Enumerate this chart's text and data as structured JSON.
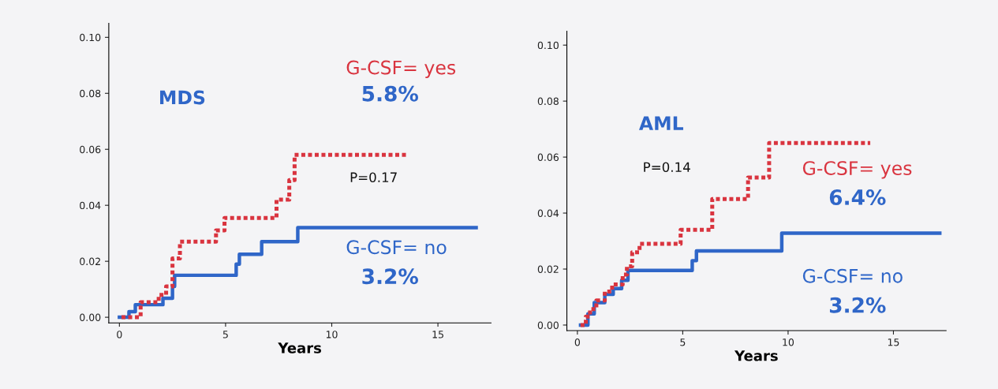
{
  "chart_data": [
    {
      "type": "step",
      "title": "MDS",
      "xlabel": "Years",
      "xlim": [
        -0.5,
        17.5
      ],
      "xticks": [
        0,
        5,
        10,
        15
      ],
      "ylim": [
        -0.002,
        0.105
      ],
      "yticks": [
        {
          "value": 0.0,
          "label": "0.00"
        },
        {
          "value": 0.02,
          "label": "0.02"
        },
        {
          "value": 0.04,
          "label": "0.04"
        },
        {
          "value": 0.06,
          "label": "0.06"
        },
        {
          "value": 0.08,
          "label": "0.08"
        },
        {
          "value": 0.1,
          "label": "0.10"
        }
      ],
      "grid": false,
      "legend": false,
      "series": [
        {
          "name": "G-CSF= yes",
          "color": "#d9343f",
          "line_style": "dotted",
          "x": [
            0.1,
            1.0,
            1.85,
            2.2,
            2.5,
            2.85,
            4.55,
            4.95,
            7.4,
            8.0,
            8.25,
            13.6
          ],
          "values": [
            0.0,
            0.0054,
            0.008,
            0.011,
            0.021,
            0.027,
            0.031,
            0.0355,
            0.042,
            0.049,
            0.058,
            0.058
          ]
        },
        {
          "name": "G-CSF= no",
          "color": "#2f66c8",
          "line_style": "solid",
          "x": [
            0.0,
            0.45,
            0.75,
            2.05,
            2.5,
            2.6,
            5.5,
            5.65,
            6.7,
            8.4,
            16.8
          ],
          "values": [
            0.0,
            0.002,
            0.0045,
            0.0068,
            0.011,
            0.015,
            0.019,
            0.0225,
            0.027,
            0.032,
            0.032
          ]
        }
      ],
      "annotations": [
        "5.8%",
        "P=0.17",
        "3.2%"
      ]
    },
    {
      "type": "step",
      "title": "AML",
      "xlabel": "Years",
      "xlim": [
        -0.5,
        17.5
      ],
      "xticks": [
        0,
        5,
        10,
        15
      ],
      "ylim": [
        -0.002,
        0.105
      ],
      "yticks": [
        {
          "value": 0.0,
          "label": "0.00"
        },
        {
          "value": 0.02,
          "label": "0.02"
        },
        {
          "value": 0.04,
          "label": "0.04"
        },
        {
          "value": 0.06,
          "label": "0.06"
        },
        {
          "value": 0.08,
          "label": "0.08"
        },
        {
          "value": 0.1,
          "label": "0.10"
        }
      ],
      "grid": false,
      "legend": false,
      "series": [
        {
          "name": "G-CSF= yes",
          "color": "#d9343f",
          "line_style": "dotted",
          "x": [
            0.15,
            0.4,
            0.6,
            0.9,
            1.3,
            1.65,
            2.15,
            2.35,
            2.6,
            2.95,
            4.9,
            6.4,
            8.1,
            9.1,
            13.9
          ],
          "values": [
            0.0,
            0.003,
            0.0057,
            0.0088,
            0.012,
            0.0145,
            0.018,
            0.021,
            0.026,
            0.029,
            0.034,
            0.045,
            0.0527,
            0.065,
            0.065
          ]
        },
        {
          "name": "G-CSF= no",
          "color": "#2f66c8",
          "line_style": "solid",
          "x": [
            0.15,
            0.5,
            0.8,
            1.3,
            1.7,
            2.1,
            2.4,
            5.45,
            5.65,
            9.7,
            17.2
          ],
          "values": [
            0.0,
            0.004,
            0.008,
            0.011,
            0.013,
            0.016,
            0.0195,
            0.023,
            0.0265,
            0.0328,
            0.0328
          ]
        }
      ],
      "annotations": [
        "P=0.14",
        "6.4%",
        "3.2%"
      ]
    }
  ]
}
